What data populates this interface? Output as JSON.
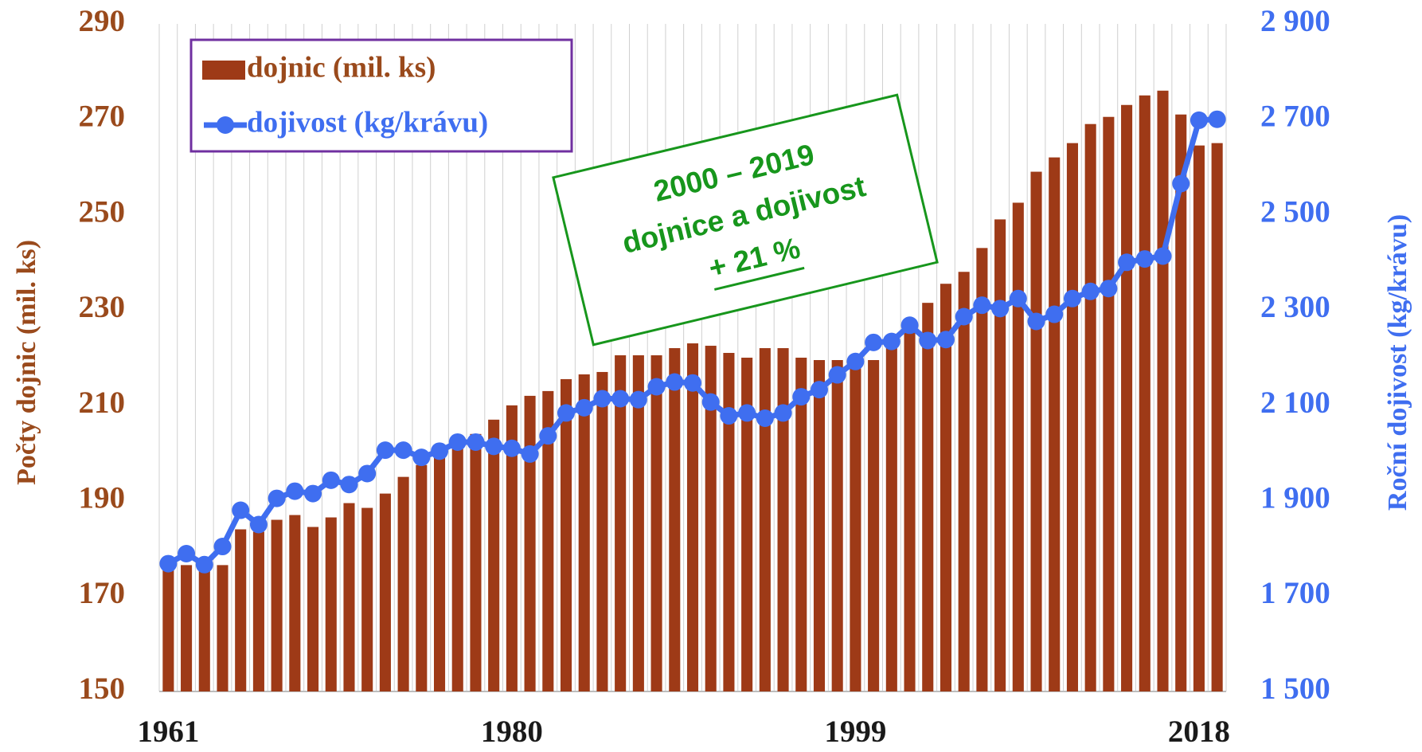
{
  "chart_data": {
    "type": "bar_line",
    "categories": [
      "1961",
      null,
      null,
      null,
      null,
      null,
      null,
      null,
      null,
      null,
      null,
      null,
      null,
      null,
      null,
      null,
      null,
      null,
      null,
      "1980",
      null,
      null,
      null,
      null,
      null,
      null,
      null,
      null,
      null,
      null,
      null,
      null,
      null,
      null,
      null,
      null,
      null,
      null,
      "1999",
      null,
      null,
      null,
      null,
      null,
      null,
      null,
      null,
      null,
      null,
      null,
      null,
      null,
      null,
      null,
      null,
      null,
      null,
      "2018",
      null
    ],
    "series": [
      {
        "name": "dojnic (mil. ks)",
        "type": "bar",
        "color": "#9e3a17",
        "values": [
          176,
          176.5,
          176,
          176.5,
          184,
          183.5,
          186,
          187,
          184.5,
          186.5,
          189.5,
          188.5,
          191.5,
          195,
          197.5,
          200.5,
          202,
          204,
          207,
          210,
          212,
          213,
          215.5,
          216.5,
          217,
          220.5,
          220.5,
          220.5,
          222,
          223,
          222.5,
          221,
          220,
          222,
          222,
          220,
          219.5,
          219.5,
          219,
          219.5,
          224,
          228,
          231.5,
          235.5,
          238,
          243,
          249,
          252.5,
          259,
          262,
          265,
          269,
          270.5,
          273,
          275,
          276,
          271,
          264.5,
          265
        ]
      },
      {
        "name": "dojivost (kg/krávu)",
        "type": "line",
        "axis": "y2",
        "color": "#3f6ef0",
        "values": [
          1768,
          1789,
          1766,
          1804,
          1880,
          1850,
          1905,
          1920,
          1915,
          1943,
          1934,
          1957,
          2006,
          2006,
          1991,
          2004,
          2023,
          2023,
          2014,
          2010,
          1998,
          2036,
          2084,
          2095,
          2114,
          2114,
          2112,
          2139,
          2149,
          2147,
          2107,
          2078,
          2084,
          2073,
          2084,
          2118,
          2133,
          2164,
          2192,
          2232,
          2234,
          2268,
          2236,
          2238,
          2286,
          2310,
          2303,
          2324,
          2276,
          2291,
          2324,
          2339,
          2345,
          2400,
          2407,
          2413,
          2565,
          2698,
          2700
        ]
      }
    ],
    "ylabel": "Počty dojnic (mil. ks)",
    "y2label": "Roční dojivost (kg/krávu)",
    "ylim": [
      150,
      290
    ],
    "yticks": [
      150,
      170,
      190,
      210,
      230,
      250,
      270,
      290
    ],
    "y2lim": [
      1500,
      2900
    ],
    "y2ticks": [
      {
        "value": 1500,
        "label": "1 500"
      },
      {
        "value": 1700,
        "label": "1 700"
      },
      {
        "value": 1900,
        "label": "1 900"
      },
      {
        "value": 2100,
        "label": "2 100"
      },
      {
        "value": 2300,
        "label": "2 300"
      },
      {
        "value": 2500,
        "label": "2 500"
      },
      {
        "value": 2700,
        "label": "2 700"
      },
      {
        "value": 2900,
        "label": "2 900"
      }
    ],
    "xgrid": true,
    "legend": "upper left",
    "annotation": {
      "lines": [
        "2000 – 2019",
        "dojnice a dojivost",
        "+ 21 %"
      ],
      "color": "#17961c"
    }
  }
}
